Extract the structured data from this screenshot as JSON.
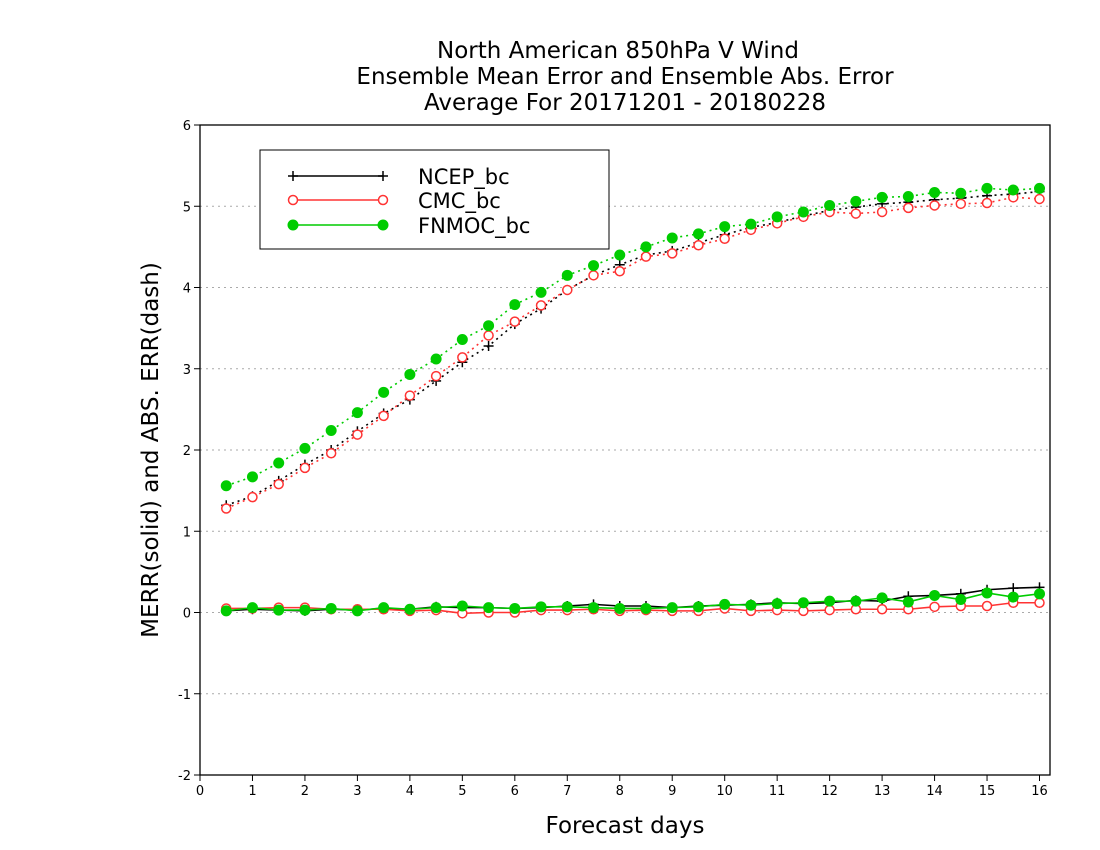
{
  "chart_data": {
    "type": "line",
    "title_lines": [
      "North American 850hPa V Wind",
      "Ensemble Mean Error and Ensemble Abs. Error",
      "Average For 20171201 - 20180228"
    ],
    "xlabel": "Forecast days",
    "ylabel": "MERR(solid) and ABS. ERR(dash)",
    "xlim": [
      0,
      16.2
    ],
    "ylim": [
      -2,
      6
    ],
    "xticks": [
      0,
      1,
      2,
      3,
      4,
      5,
      6,
      7,
      8,
      9,
      10,
      11,
      12,
      13,
      14,
      15,
      16
    ],
    "yticks": [
      -2,
      -1,
      0,
      1,
      2,
      3,
      4,
      5,
      6
    ],
    "ytick_labels": [
      "-2",
      "-1",
      "0",
      "1",
      "2",
      "3",
      "4",
      "5",
      "6"
    ],
    "grid": "horizontal dotted",
    "legend_position": "top-left",
    "x": [
      0.5,
      1.0,
      1.5,
      2.0,
      2.5,
      3.0,
      3.5,
      4.0,
      4.5,
      5.0,
      5.5,
      6.0,
      6.5,
      7.0,
      7.5,
      8.0,
      8.5,
      9.0,
      9.5,
      10.0,
      10.5,
      11.0,
      11.5,
      12.0,
      12.5,
      13.0,
      13.5,
      14.0,
      14.5,
      15.0,
      15.5,
      16.0
    ],
    "series": [
      {
        "name": "NCEP_bc",
        "color": "#000000",
        "marker": "plus",
        "abs_err": [
          1.32,
          1.43,
          1.62,
          1.82,
          2.0,
          2.23,
          2.45,
          2.62,
          2.85,
          3.08,
          3.28,
          3.55,
          3.74,
          3.97,
          4.15,
          4.28,
          4.4,
          4.45,
          4.55,
          4.65,
          4.74,
          4.8,
          4.88,
          4.95,
          4.99,
          5.03,
          5.05,
          5.08,
          5.1,
          5.13,
          5.15,
          5.18
        ],
        "mean_err": [
          0.02,
          0.04,
          0.03,
          0.02,
          0.04,
          0.03,
          0.05,
          0.04,
          0.07,
          0.06,
          0.06,
          0.05,
          0.06,
          0.08,
          0.1,
          0.08,
          0.08,
          0.06,
          0.08,
          0.09,
          0.1,
          0.12,
          0.11,
          0.12,
          0.15,
          0.14,
          0.2,
          0.21,
          0.23,
          0.28,
          0.3,
          0.31
        ]
      },
      {
        "name": "CMC_bc",
        "color": "#ff3333",
        "marker": "open-circle",
        "abs_err": [
          1.28,
          1.42,
          1.58,
          1.78,
          1.96,
          2.19,
          2.42,
          2.67,
          2.91,
          3.14,
          3.41,
          3.58,
          3.78,
          3.97,
          4.15,
          4.2,
          4.38,
          4.42,
          4.52,
          4.6,
          4.71,
          4.79,
          4.87,
          4.93,
          4.91,
          4.93,
          4.98,
          5.01,
          5.03,
          5.04,
          5.11,
          5.09
        ],
        "mean_err": [
          0.05,
          0.05,
          0.06,
          0.06,
          0.04,
          0.04,
          0.04,
          0.02,
          0.03,
          -0.01,
          0.0,
          0.0,
          0.03,
          0.03,
          0.04,
          0.02,
          0.03,
          0.02,
          0.02,
          0.05,
          0.02,
          0.03,
          0.02,
          0.03,
          0.04,
          0.04,
          0.04,
          0.07,
          0.08,
          0.08,
          0.12,
          0.12
        ]
      },
      {
        "name": "FNMOC_bc",
        "color": "#00cc00",
        "marker": "filled-circle",
        "abs_err": [
          1.56,
          1.67,
          1.84,
          2.02,
          2.24,
          2.46,
          2.71,
          2.93,
          3.12,
          3.36,
          3.53,
          3.79,
          3.94,
          4.15,
          4.27,
          4.4,
          4.5,
          4.61,
          4.66,
          4.75,
          4.78,
          4.87,
          4.93,
          5.01,
          5.06,
          5.11,
          5.12,
          5.17,
          5.16,
          5.22,
          5.2,
          5.22
        ],
        "mean_err": [
          0.02,
          0.06,
          0.03,
          0.03,
          0.05,
          0.02,
          0.06,
          0.04,
          0.06,
          0.08,
          0.06,
          0.05,
          0.07,
          0.07,
          0.06,
          0.05,
          0.05,
          0.06,
          0.07,
          0.1,
          0.09,
          0.11,
          0.12,
          0.14,
          0.14,
          0.18,
          0.13,
          0.21,
          0.16,
          0.24,
          0.19,
          0.23
        ]
      }
    ]
  }
}
